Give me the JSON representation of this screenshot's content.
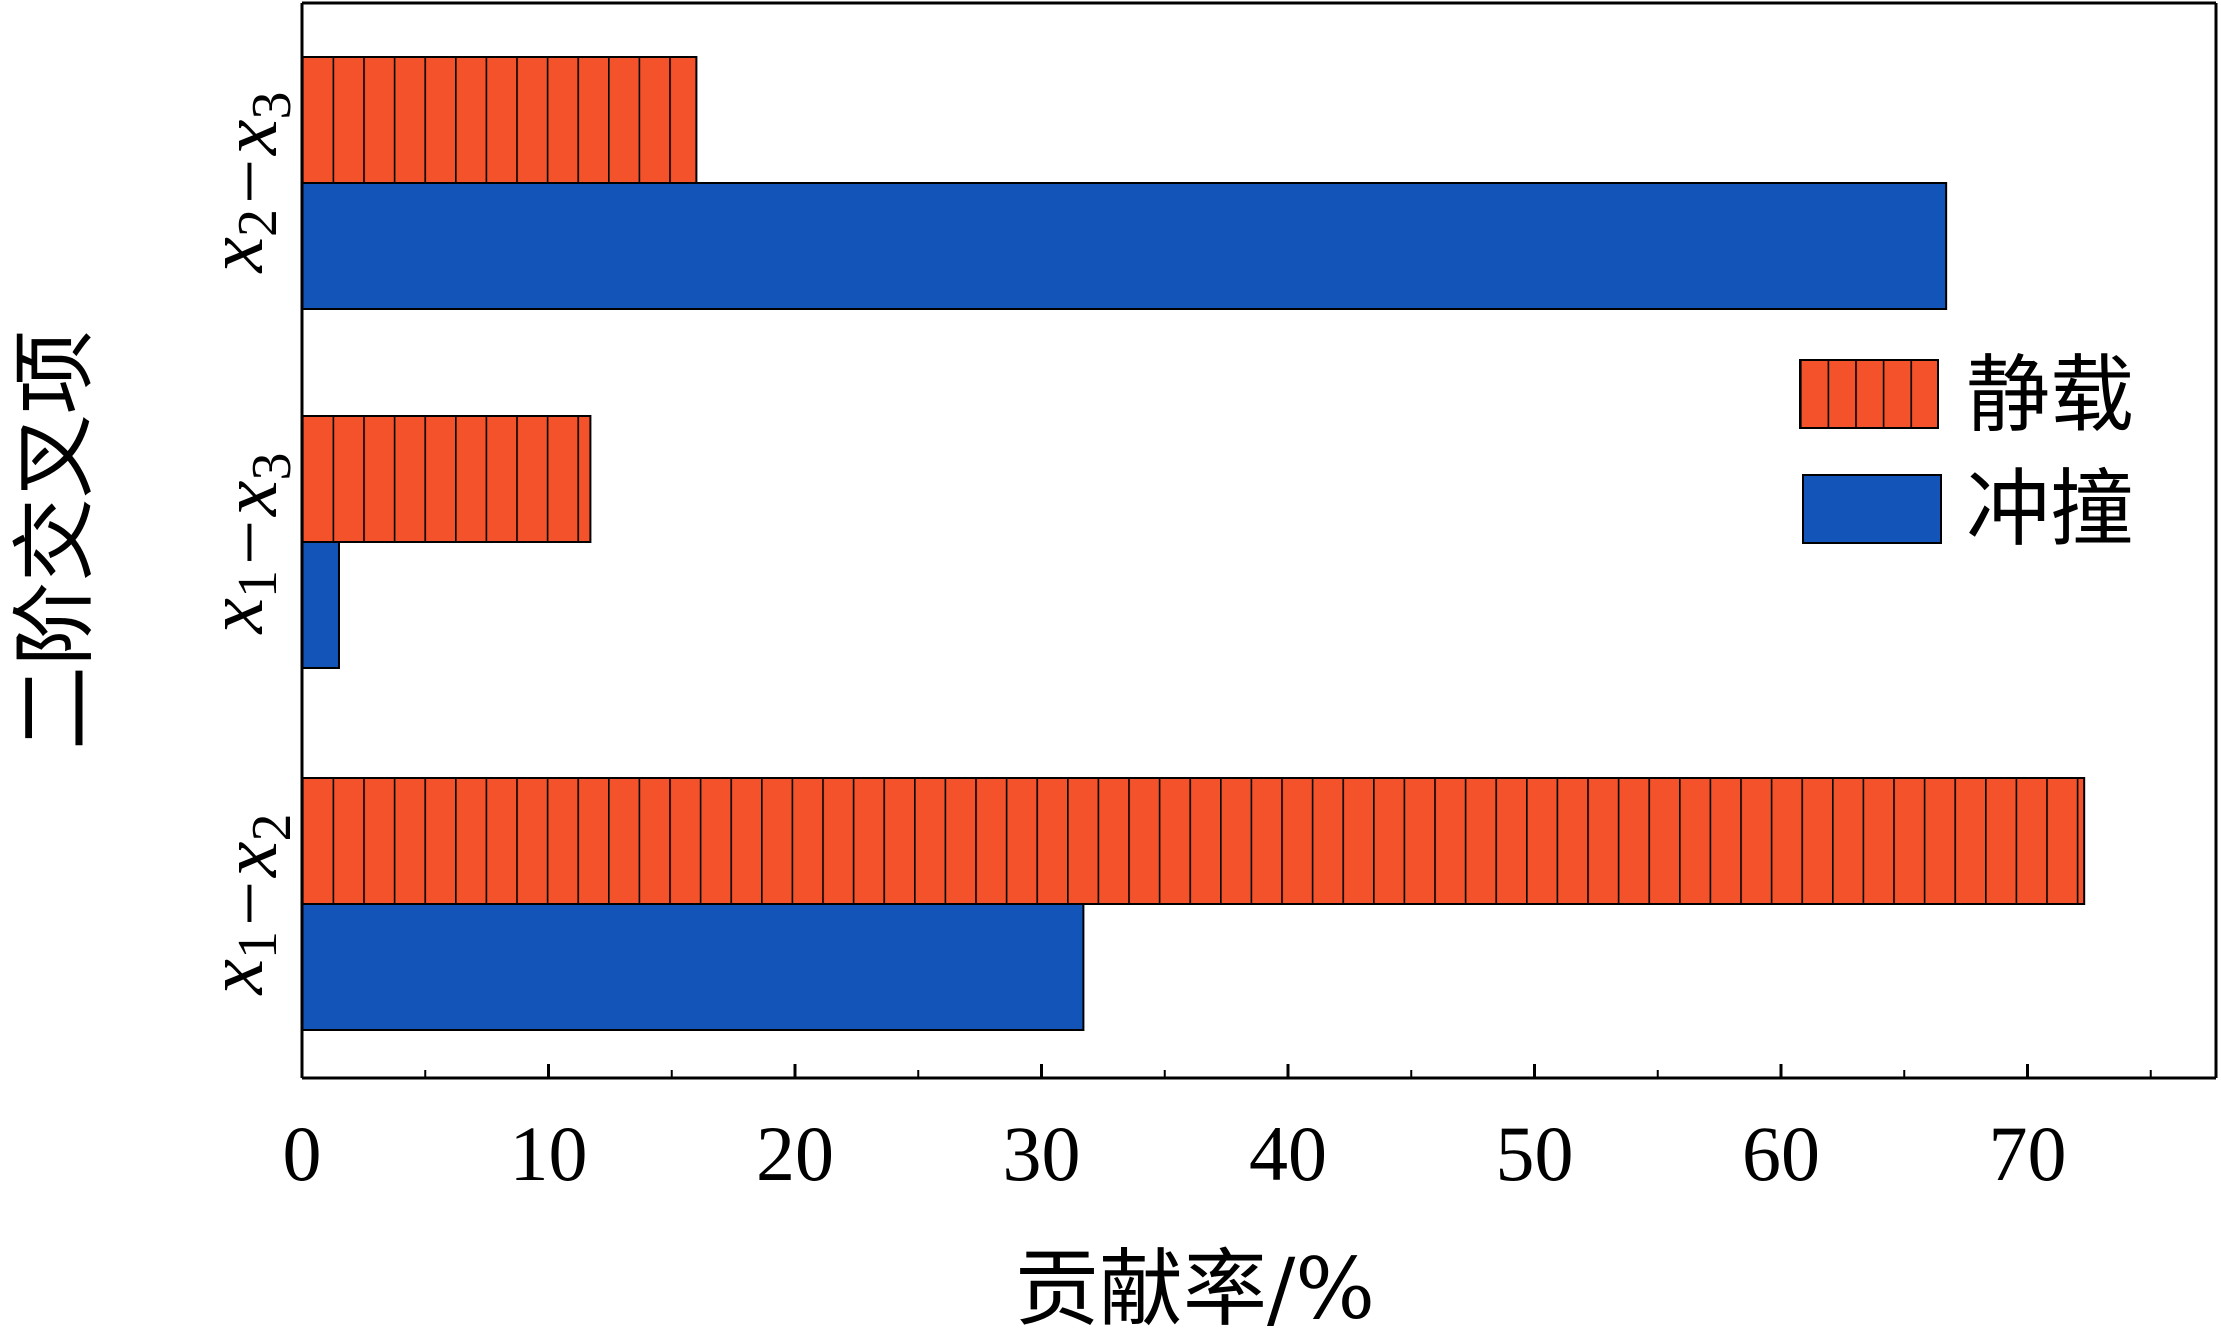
{
  "chart_data": {
    "type": "bar",
    "orientation": "horizontal",
    "xlabel": "贡献率/%",
    "ylabel": "二阶交叉项",
    "xlim": [
      0,
      78
    ],
    "x_ticks": [
      "0",
      "10",
      "20",
      "30",
      "40",
      "50",
      "60",
      "70"
    ],
    "categories": [
      {
        "base": "x",
        "sub1": "1",
        "sep": "−",
        "base2": "x",
        "sub2": "2"
      },
      {
        "base": "x",
        "sub1": "1",
        "sep": "−",
        "base2": "x",
        "sub2": "3"
      },
      {
        "base": "x",
        "sub1": "2",
        "sep": "−",
        "base2": "x",
        "sub2": "3"
      }
    ],
    "series": [
      {
        "name": "静载",
        "values": [
          72.3,
          11.7,
          16.0
        ],
        "color": "#F4522B",
        "pattern": "vertical-stripes"
      },
      {
        "name": "冲撞",
        "values": [
          31.7,
          1.5,
          66.7
        ],
        "color": "#1254B8",
        "pattern": "solid"
      }
    ],
    "legend_position": "right",
    "grid": false
  }
}
